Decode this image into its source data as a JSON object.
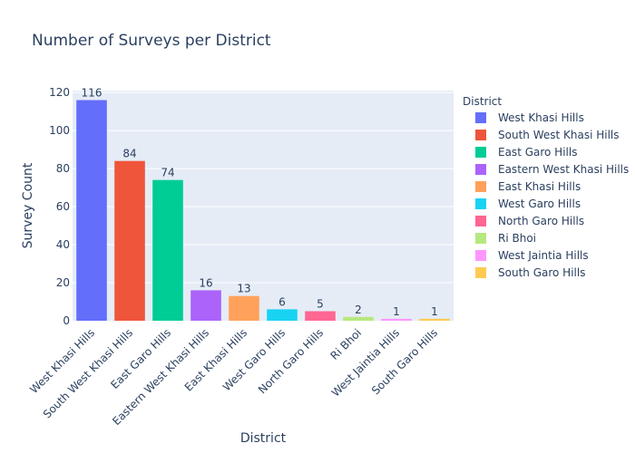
{
  "chart_data": {
    "type": "bar",
    "title": "Number of Surveys per District",
    "xlabel": "District",
    "ylabel": "Survey Count",
    "legend_title": "District",
    "legend_position": "right",
    "ylim": [
      0,
      121
    ],
    "y_ticks": [
      0,
      20,
      40,
      60,
      80,
      100,
      120
    ],
    "grid": true,
    "categories": [
      "West Khasi Hills",
      "South West Khasi Hills",
      "East Garo Hills",
      "Eastern West Khasi Hills",
      "East Khasi Hills",
      "West Garo Hills",
      "North Garo Hills",
      "Ri Bhoi",
      "West Jaintia Hills",
      "South Garo Hills"
    ],
    "values": [
      116,
      84,
      74,
      16,
      13,
      6,
      5,
      2,
      1,
      1
    ],
    "colors": [
      "#636efa",
      "#EF553B",
      "#00cc96",
      "#ab63fa",
      "#FFA15A",
      "#19d3f3",
      "#FF6692",
      "#B6E880",
      "#FF97FF",
      "#FECB52"
    ],
    "plot_background": "#E5ECF6",
    "gridline_color": "#ffffff"
  }
}
